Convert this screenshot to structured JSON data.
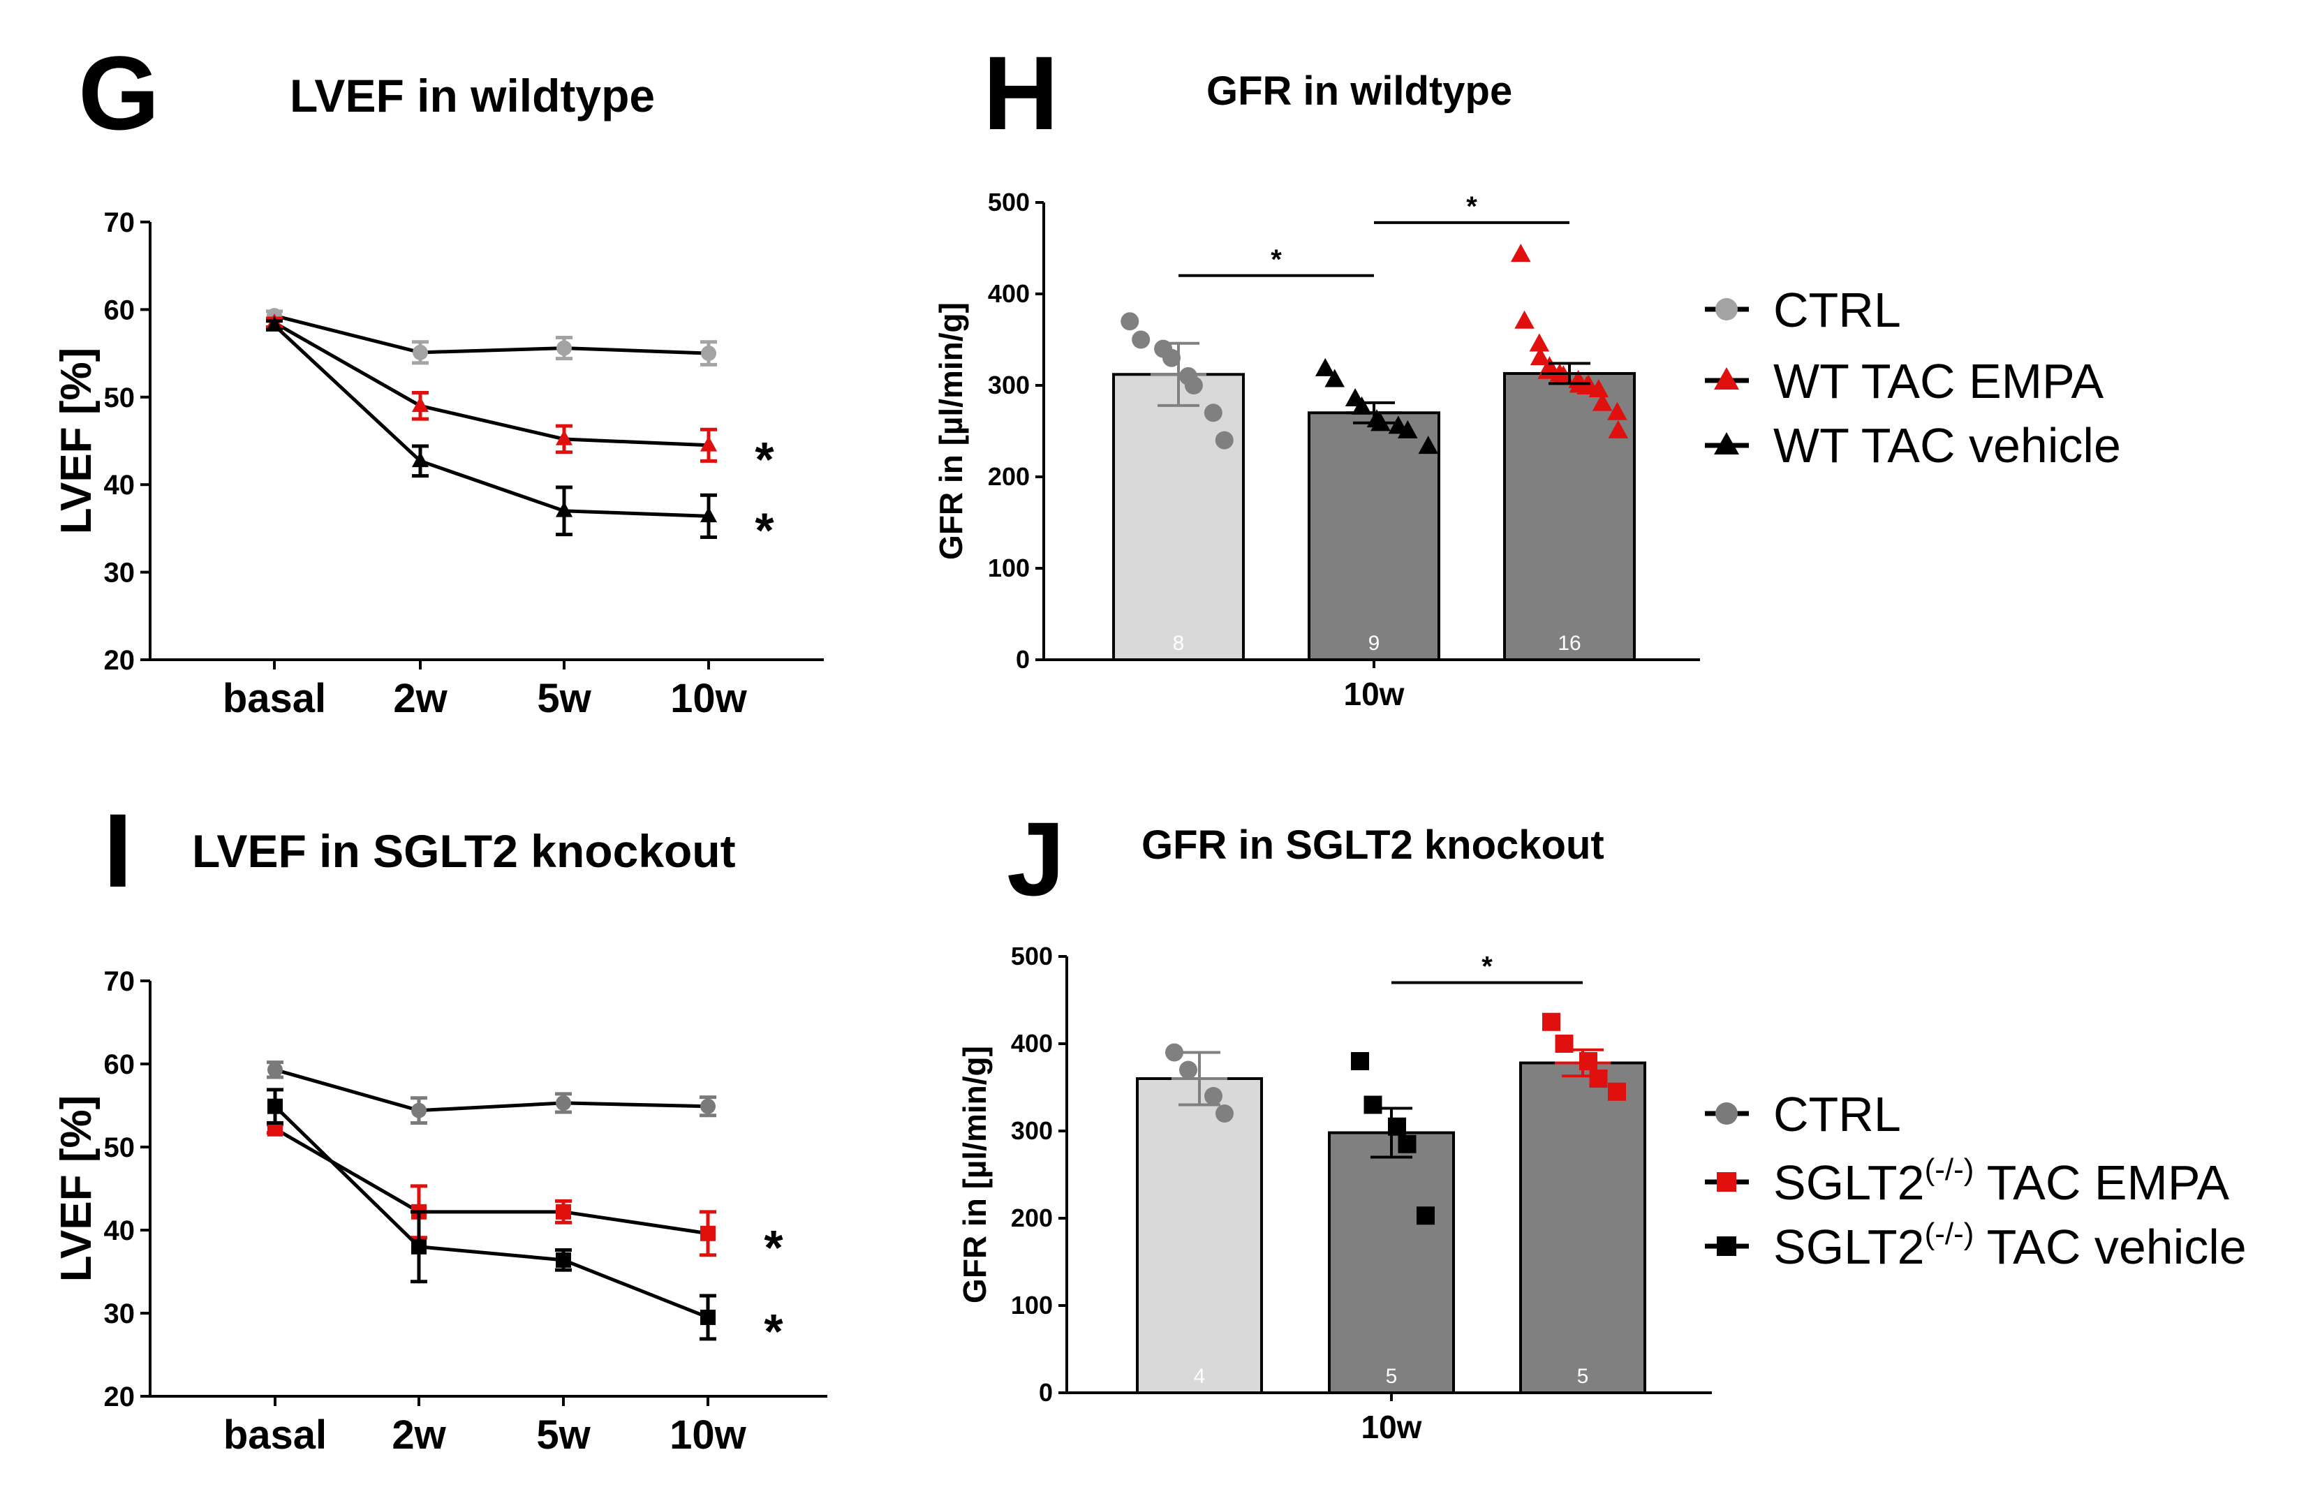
{
  "colors": {
    "ctrl_wt": "#a3a3a3",
    "ctrl_ko": "#7a7a7a",
    "empa": "#e0100f",
    "vehicle": "#000000",
    "bar_ctrl": "#d9d9d9",
    "bar_tac": "#808080"
  },
  "panels": {
    "G": {
      "letter": "G",
      "title": "LVEF in wildtype"
    },
    "H": {
      "letter": "H",
      "title": "GFR in wildtype"
    },
    "I": {
      "letter": "I",
      "title": "LVEF in SGLT2 knockout"
    },
    "J": {
      "letter": "J",
      "title": "GFR in SGLT2 knockout"
    }
  },
  "legends": {
    "wt": [
      "CTRL",
      "WT TAC EMPA",
      "WT TAC vehicle"
    ],
    "ko": [
      {
        "main": "CTRL",
        "sup": "",
        "rest": ""
      },
      {
        "main": "SGLT2",
        "sup": "(-/-)",
        "rest": " TAC EMPA"
      },
      {
        "main": "SGLT2",
        "sup": "(-/-)",
        "rest": " TAC vehicle"
      }
    ]
  },
  "chart_data": [
    {
      "id": "G",
      "type": "line",
      "title": "LVEF in wildtype",
      "ylabel": "LVEF [%]",
      "xlabel": "",
      "ylim": [
        20,
        70
      ],
      "yticks": [
        "20",
        "30",
        "40",
        "50",
        "60",
        "70"
      ],
      "categories": [
        "basal",
        "2w",
        "5w",
        "10w"
      ],
      "series": [
        {
          "name": "CTRL",
          "marker": "circle",
          "values": [
            59.3,
            55.1,
            55.6,
            55.0
          ],
          "errors": [
            0.5,
            1.2,
            1.2,
            1.3
          ]
        },
        {
          "name": "WT TAC EMPA",
          "marker": "triangle",
          "values": [
            58.5,
            49.0,
            45.2,
            44.5
          ],
          "errors": [
            0.5,
            1.5,
            1.5,
            1.8
          ],
          "significance": "*"
        },
        {
          "name": "WT TAC vehicle",
          "marker": "triangle",
          "values": [
            58.2,
            42.7,
            37.0,
            36.4
          ],
          "errors": [
            0.5,
            1.7,
            2.7,
            2.4
          ],
          "significance": "*"
        }
      ]
    },
    {
      "id": "H",
      "type": "bar",
      "title": "GFR in wildtype",
      "ylabel": "GFR in [µl/min/g]",
      "xlabel": "10w",
      "ylim": [
        0,
        500
      ],
      "yticks": [
        "0",
        "100",
        "200",
        "300",
        "400",
        "500"
      ],
      "categories": [
        "CTRL",
        "WT TAC vehicle",
        "WT TAC EMPA"
      ],
      "values": [
        312,
        270,
        313
      ],
      "errors": [
        34,
        11,
        11
      ],
      "n": [
        "8",
        "9",
        "16"
      ],
      "points": [
        [
          370,
          350,
          340,
          330,
          310,
          300,
          270,
          240
        ],
        [
          318,
          306,
          285,
          276,
          262,
          258,
          255,
          250,
          233
        ],
        [
          443,
          370,
          345,
          330,
          320,
          315,
          312,
          310,
          305,
          300,
          300,
          298,
          295,
          280,
          270,
          250
        ]
      ],
      "comparisons": [
        {
          "from": 0,
          "to": 1,
          "label": "*",
          "y": 420
        },
        {
          "from": 1,
          "to": 2,
          "label": "*",
          "y": 478
        }
      ]
    },
    {
      "id": "I",
      "type": "line",
      "title": "LVEF in SGLT2 knockout",
      "ylabel": "LVEF [%]",
      "xlabel": "",
      "ylim": [
        20,
        70
      ],
      "yticks": [
        "20",
        "30",
        "40",
        "50",
        "60",
        "70"
      ],
      "categories": [
        "basal",
        "2w",
        "5w",
        "10w"
      ],
      "series": [
        {
          "name": "CTRL",
          "marker": "circle",
          "values": [
            59.3,
            54.4,
            55.3,
            54.9
          ],
          "errors": [
            0.9,
            1.5,
            1.1,
            1.1
          ]
        },
        {
          "name": "SGLT2(-/-) TAC EMPA",
          "marker": "square",
          "values": [
            52.2,
            42.2,
            42.2,
            39.6
          ],
          "errors": [
            0.5,
            3.1,
            1.3,
            2.6
          ],
          "significance": "*"
        },
        {
          "name": "SGLT2(-/-) TAC vehicle",
          "marker": "square",
          "values": [
            54.9,
            38.0,
            36.4,
            29.5
          ],
          "errors": [
            2.0,
            4.2,
            1.2,
            2.6
          ],
          "significance": "*"
        }
      ]
    },
    {
      "id": "J",
      "type": "bar",
      "title": "GFR in SGLT2 knockout",
      "ylabel": "GFR in [µl/min/g]",
      "xlabel": "10w",
      "ylim": [
        0,
        500
      ],
      "yticks": [
        "0",
        "100",
        "200",
        "300",
        "400",
        "500"
      ],
      "categories": [
        "CTRL",
        "SGLT2(-/-) TAC vehicle",
        "SGLT2(-/-) TAC EMPA"
      ],
      "values": [
        360,
        298,
        378
      ],
      "errors": [
        30,
        28,
        15
      ],
      "n": [
        "4",
        "5",
        "5"
      ],
      "points": [
        [
          390,
          370,
          340,
          320
        ],
        [
          380,
          330,
          305,
          285,
          203
        ],
        [
          425,
          400,
          380,
          360,
          345
        ]
      ],
      "comparisons": [
        {
          "from": 1,
          "to": 2,
          "label": "*",
          "y": 470
        }
      ]
    }
  ]
}
